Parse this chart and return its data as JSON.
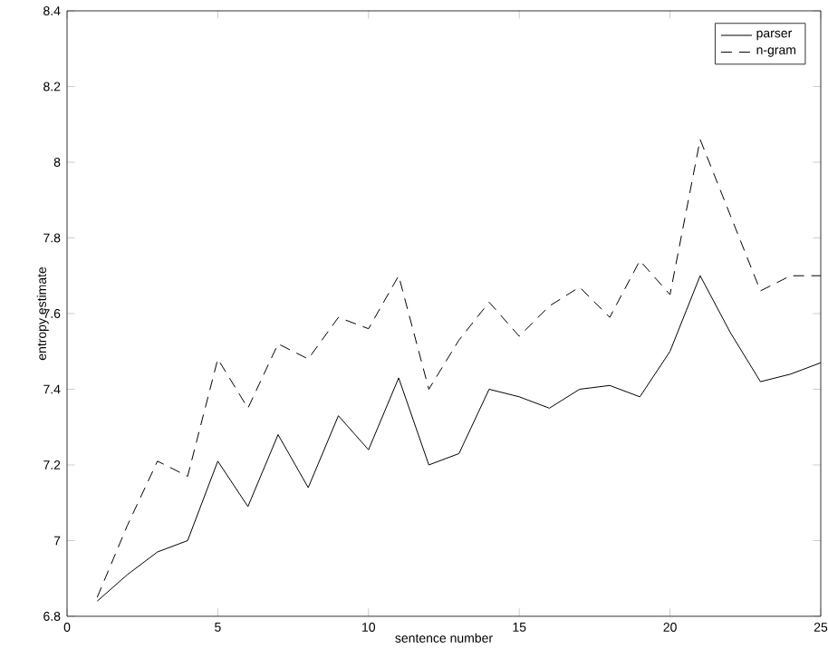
{
  "chart_data": {
    "type": "line",
    "xlabel": "sentence number",
    "ylabel": "entropy estimate",
    "x": [
      1,
      2,
      3,
      4,
      5,
      6,
      7,
      8,
      9,
      10,
      11,
      12,
      13,
      14,
      15,
      16,
      17,
      18,
      19,
      20,
      21,
      22,
      23,
      24,
      25
    ],
    "series": [
      {
        "name": "parser",
        "color": "#000000",
        "line_style": "solid",
        "values": [
          6.84,
          6.91,
          6.97,
          7.0,
          7.21,
          7.09,
          7.28,
          7.14,
          7.33,
          7.24,
          7.43,
          7.2,
          7.23,
          7.4,
          7.38,
          7.35,
          7.4,
          7.41,
          7.38,
          7.5,
          7.7,
          7.55,
          7.42,
          7.44,
          7.47
        ]
      },
      {
        "name": "n-gram",
        "color": "#000000",
        "line_style": "dashed",
        "values": [
          6.85,
          7.04,
          7.21,
          7.17,
          7.48,
          7.35,
          7.52,
          7.48,
          7.59,
          7.56,
          7.7,
          7.4,
          7.53,
          7.63,
          7.54,
          7.62,
          7.67,
          7.59,
          7.74,
          7.65,
          8.06,
          7.86,
          7.66,
          7.7,
          7.7
        ]
      }
    ],
    "xlim": [
      0,
      25
    ],
    "ylim": [
      6.8,
      8.4
    ],
    "xticks": [
      0,
      5,
      10,
      15,
      20,
      25
    ],
    "yticks": [
      6.8,
      7,
      7.2,
      7.4,
      7.6,
      7.8,
      8,
      8.2,
      8.4
    ],
    "legend": "top right",
    "marker": "none"
  }
}
